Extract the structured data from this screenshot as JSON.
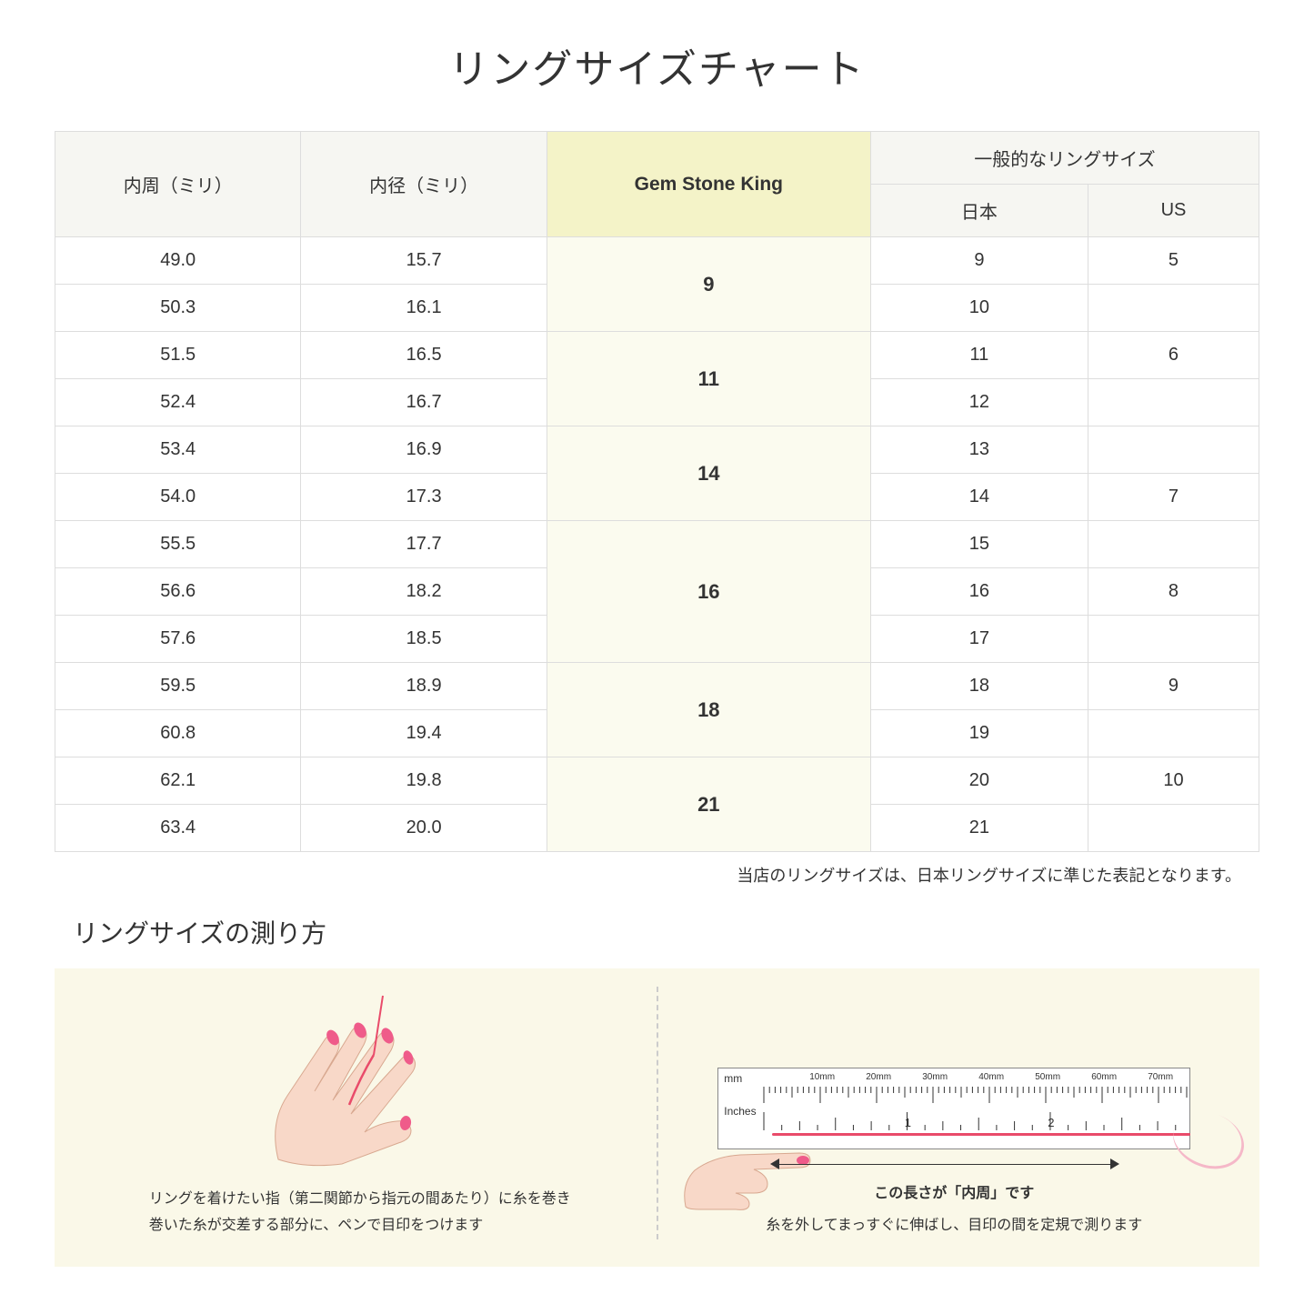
{
  "title": "リングサイズチャート",
  "table": {
    "headers": {
      "circumference": "内周（ミリ）",
      "diameter": "内径（ミリ）",
      "gsk": "Gem Stone King",
      "general": "一般的なリングサイズ",
      "japan": "日本",
      "us": "US"
    },
    "groups": [
      {
        "gsk": "9",
        "rows": [
          {
            "c": "49.0",
            "d": "15.7",
            "jp": "9",
            "us": "5"
          },
          {
            "c": "50.3",
            "d": "16.1",
            "jp": "10",
            "us": ""
          }
        ]
      },
      {
        "gsk": "11",
        "rows": [
          {
            "c": "51.5",
            "d": "16.5",
            "jp": "11",
            "us": "6"
          },
          {
            "c": "52.4",
            "d": "16.7",
            "jp": "12",
            "us": ""
          }
        ]
      },
      {
        "gsk": "14",
        "rows": [
          {
            "c": "53.4",
            "d": "16.9",
            "jp": "13",
            "us": ""
          },
          {
            "c": "54.0",
            "d": "17.3",
            "jp": "14",
            "us": "7"
          }
        ]
      },
      {
        "gsk": "16",
        "rows": [
          {
            "c": "55.5",
            "d": "17.7",
            "jp": "15",
            "us": ""
          },
          {
            "c": "56.6",
            "d": "18.2",
            "jp": "16",
            "us": "8"
          },
          {
            "c": "57.6",
            "d": "18.5",
            "jp": "17",
            "us": ""
          }
        ]
      },
      {
        "gsk": "18",
        "rows": [
          {
            "c": "59.5",
            "d": "18.9",
            "jp": "18",
            "us": "9"
          },
          {
            "c": "60.8",
            "d": "19.4",
            "jp": "19",
            "us": ""
          }
        ]
      },
      {
        "gsk": "21",
        "rows": [
          {
            "c": "62.1",
            "d": "19.8",
            "jp": "20",
            "us": "10"
          },
          {
            "c": "63.4",
            "d": "20.0",
            "jp": "21",
            "us": ""
          }
        ]
      }
    ]
  },
  "note": "当店のリングサイズは、日本リングサイズに準じた表記となります。",
  "howto": {
    "title": "リングサイズの測り方",
    "left_caption_1": "リングを着けたい指（第二関節から指元の間あたり）に糸を巻き",
    "left_caption_2": "巻いた糸が交差する部分に、ペンで目印をつけます",
    "right_length_label": "この長さが「内周」です",
    "right_caption": "糸を外してまっすぐに伸ばし、目印の間を定規で測ります",
    "ruler": {
      "mm_label": "mm",
      "in_label": "Inches",
      "mm_marks": [
        "10mm",
        "20mm",
        "30mm",
        "40mm",
        "50mm",
        "60mm",
        "70mm"
      ],
      "in_marks": [
        "1",
        "2"
      ]
    }
  },
  "colors": {
    "header_bg": "#f6f6f2",
    "gsk_header_bg": "#f4f3c8",
    "gsk_cell_bg": "#fbfbef",
    "border": "#dddddd",
    "howto_bg": "#faf8e8",
    "thread": "#e94b6a",
    "skin": "#f8d8c8",
    "nail": "#ef5b8a"
  }
}
